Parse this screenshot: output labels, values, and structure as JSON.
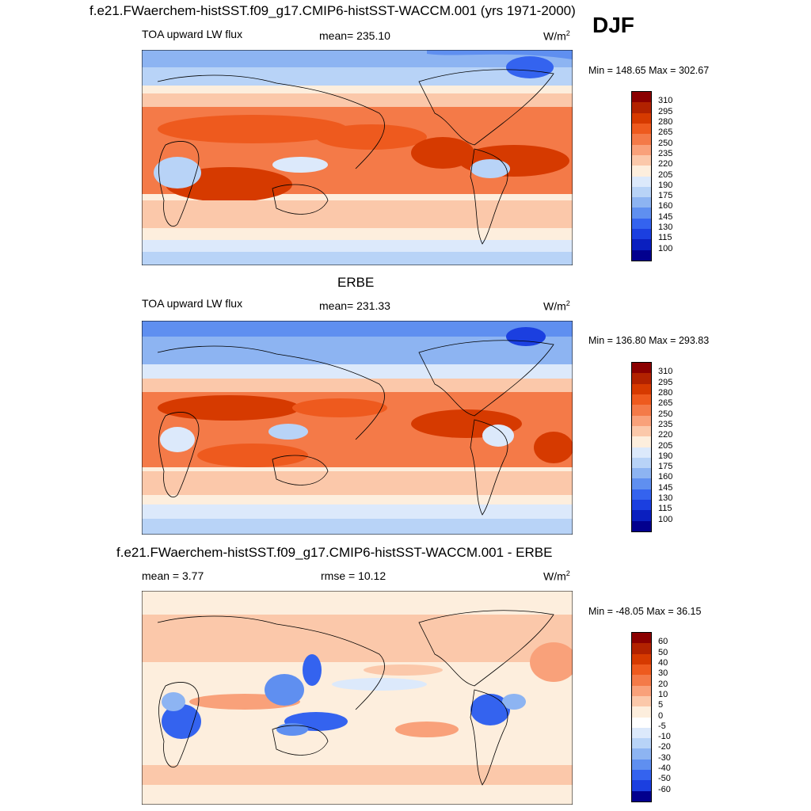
{
  "season": "DJF",
  "panels": [
    {
      "title": "f.e21.FWaerchem-histSST.f09_g17.CMIP6-histSST-WACCM.001 (yrs 1971-2000)",
      "left_label": "TOA upward LW flux",
      "center_label": "mean= 235.10",
      "units": "W/m",
      "units_exp": "2",
      "minmax": "Min = 148.65 Max = 302.67",
      "colorbar_labels": [
        "310",
        "295",
        "280",
        "265",
        "250",
        "235",
        "220",
        "205",
        "190",
        "175",
        "160",
        "145",
        "130",
        "115",
        "100"
      ],
      "colors": [
        "#8b0000",
        "#b22200",
        "#d63a00",
        "#ee5a1e",
        "#f47a48",
        "#f9a17a",
        "#fbc8aa",
        "#fdeedd",
        "#dce9fb",
        "#b8d3f7",
        "#8db4f2",
        "#5f8ff0",
        "#3463ef",
        "#1b3fe0",
        "#0a1fbf",
        "#02008e"
      ]
    },
    {
      "title": "ERBE",
      "left_label": "TOA upward LW flux",
      "center_label": "mean= 231.33",
      "units": "W/m",
      "units_exp": "2",
      "minmax": "Min = 136.80 Max = 293.83",
      "colorbar_labels": [
        "310",
        "295",
        "280",
        "265",
        "250",
        "235",
        "220",
        "205",
        "190",
        "175",
        "160",
        "145",
        "130",
        "115",
        "100"
      ],
      "colors": [
        "#8b0000",
        "#b22200",
        "#d63a00",
        "#ee5a1e",
        "#f47a48",
        "#f9a17a",
        "#fbc8aa",
        "#fdeedd",
        "#dce9fb",
        "#b8d3f7",
        "#8db4f2",
        "#5f8ff0",
        "#3463ef",
        "#1b3fe0",
        "#0a1fbf",
        "#02008e"
      ]
    },
    {
      "title": "f.e21.FWaerchem-histSST.f09_g17.CMIP6-histSST-WACCM.001 - ERBE",
      "left_label": "mean =   3.77",
      "center_label": "rmse =  10.12",
      "units": "W/m",
      "units_exp": "2",
      "minmax": "Min = -48.05 Max =  36.15",
      "colorbar_labels": [
        "60",
        "50",
        "40",
        "30",
        "20",
        "10",
        "5",
        "0",
        "-5",
        "-10",
        "-20",
        "-30",
        "-40",
        "-50",
        "-60"
      ],
      "colors": [
        "#8b0000",
        "#b22200",
        "#d63a00",
        "#ee5a1e",
        "#f47a48",
        "#f9a17a",
        "#fbc8aa",
        "#fdeedd",
        "#ffffff",
        "#dce9fb",
        "#b8d3f7",
        "#8db4f2",
        "#5f8ff0",
        "#3463ef",
        "#1b3fe0",
        "#02008e"
      ]
    }
  ]
}
